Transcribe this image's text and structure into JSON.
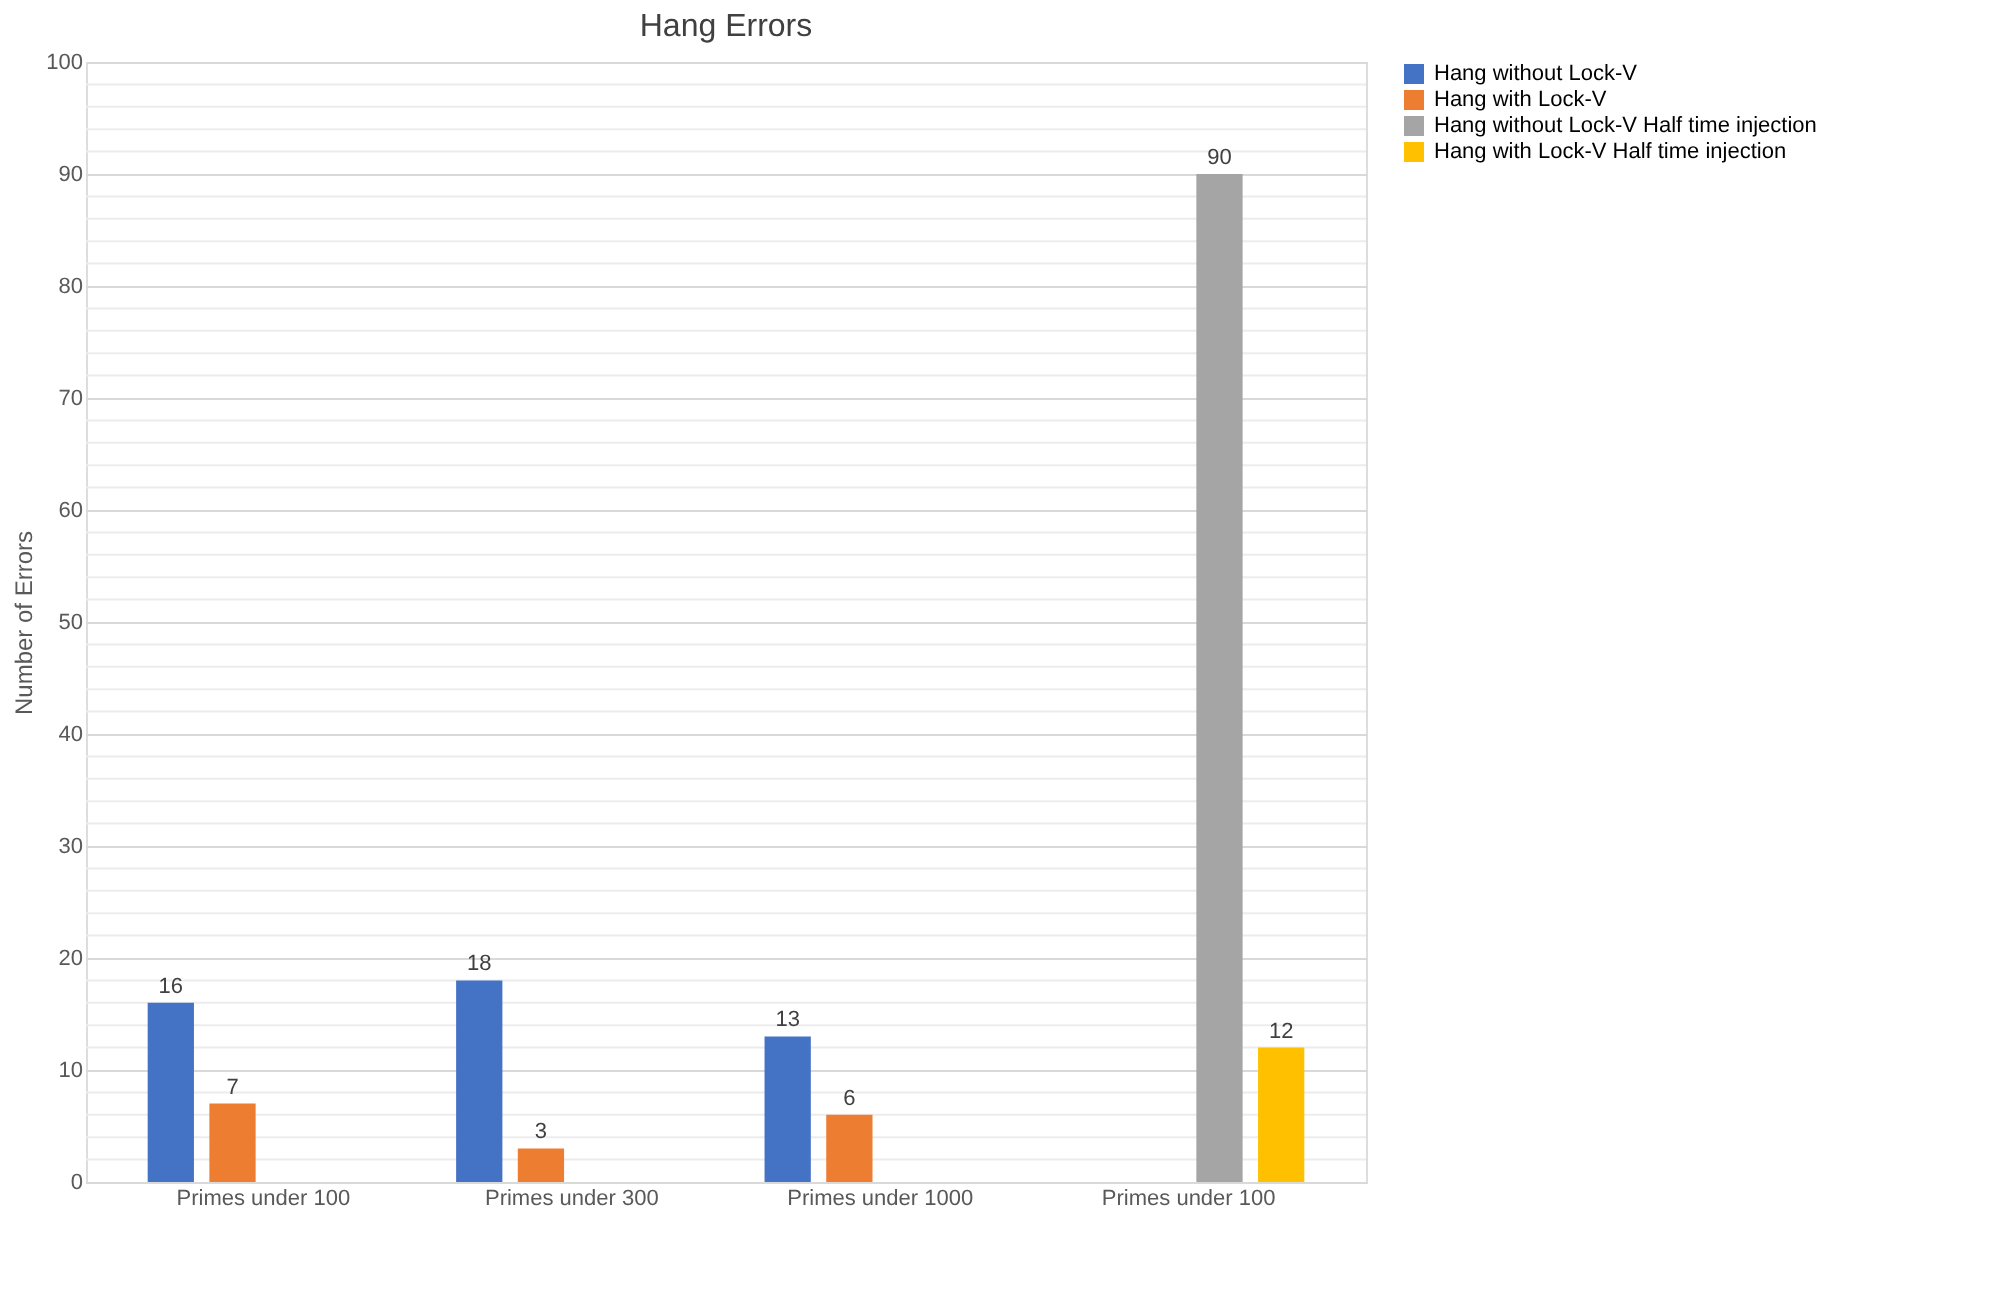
{
  "chart_data": {
    "type": "bar",
    "title": "Hang Errors",
    "ylabel": "Number of Errors",
    "categories": [
      "Primes under 100",
      "Primes under 300",
      "Primes under 1000",
      "Primes under 100"
    ],
    "series": [
      {
        "name": "Hang without Lock-V",
        "color": "#4472c4",
        "values": [
          16,
          18,
          13,
          null
        ]
      },
      {
        "name": "Hang with Lock-V",
        "color": "#ed7d31",
        "values": [
          7,
          3,
          6,
          null
        ]
      },
      {
        "name": "Hang without Lock-V Half time injection",
        "color": "#a5a5a5",
        "values": [
          null,
          null,
          null,
          90
        ]
      },
      {
        "name": "Hang with Lock-V Half time injection",
        "color": "#ffc000",
        "values": [
          null,
          null,
          null,
          12
        ]
      }
    ],
    "ylim": [
      0,
      100
    ],
    "yticks": [
      0,
      {
        "value": 2,
        "label": null
      },
      {
        "value": 4,
        "label": null
      },
      {
        "value": 6,
        "label": null
      },
      {
        "value": 8,
        "label": null
      },
      10,
      {
        "value": 12,
        "label": null
      },
      {
        "value": 14,
        "label": null
      },
      {
        "value": 16,
        "label": null
      },
      {
        "value": 18,
        "label": null
      },
      20,
      {
        "value": 22,
        "label": null
      },
      {
        "value": 24,
        "label": null
      },
      {
        "value": 26,
        "label": null
      },
      {
        "value": 28,
        "label": null
      },
      30,
      {
        "value": 32,
        "label": null
      },
      {
        "value": 34,
        "label": null
      },
      {
        "value": 36,
        "label": null
      },
      {
        "value": 38,
        "label": null
      },
      40,
      {
        "value": 42,
        "label": null
      },
      {
        "value": 44,
        "label": null
      },
      {
        "value": 46,
        "label": null
      },
      {
        "value": 48,
        "label": null
      },
      50,
      {
        "value": 52,
        "label": null
      },
      {
        "value": 54,
        "label": null
      },
      {
        "value": 56,
        "label": null
      },
      {
        "value": 58,
        "label": null
      },
      60,
      {
        "value": 62,
        "label": null
      },
      {
        "value": 64,
        "label": null
      },
      {
        "value": 66,
        "label": null
      },
      {
        "value": 68,
        "label": null
      },
      70,
      {
        "value": 72,
        "label": null
      },
      {
        "value": 74,
        "label": null
      },
      {
        "value": 76,
        "label": null
      },
      {
        "value": 78,
        "label": null
      },
      80,
      {
        "value": 82,
        "label": null
      },
      {
        "value": 84,
        "label": null
      },
      {
        "value": 86,
        "label": null
      },
      {
        "value": 88,
        "label": null
      },
      90,
      {
        "value": 92,
        "label": null
      },
      {
        "value": 94,
        "label": null
      },
      {
        "value": 96,
        "label": null
      },
      {
        "value": 98,
        "label": null
      },
      100
    ],
    "grid": "y",
    "legend": "right",
    "data_labels": true
  }
}
